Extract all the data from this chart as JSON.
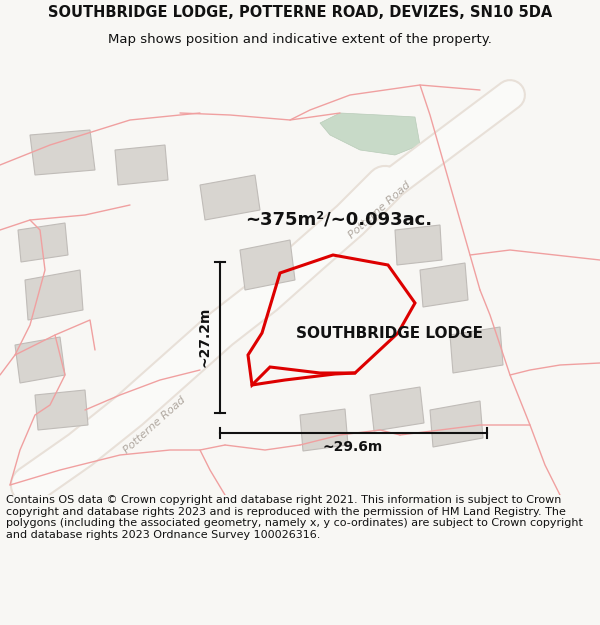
{
  "title_line1": "SOUTHBRIDGE LODGE, POTTERNE ROAD, DEVIZES, SN10 5DA",
  "title_line2": "Map shows position and indicative extent of the property.",
  "property_label": "SOUTHBRIDGE LODGE",
  "area_label": "~375m²/~0.093ac.",
  "dim_vertical": "~27.2m",
  "dim_horizontal": "~29.6m",
  "road_label1": "Potterne Road",
  "road_label2": "Potterne Road",
  "footer_text": "Contains OS data © Crown copyright and database right 2021. This information is subject to Crown copyright and database rights 2023 and is reproduced with the permission of HM Land Registry. The polygons (including the associated geometry, namely x, y co-ordinates) are subject to Crown copyright and database rights 2023 Ordnance Survey 100026316.",
  "bg_color": "#f8f7f4",
  "property_fill": "none",
  "property_edge": "#dd0000",
  "road_color": "#ffffff",
  "road_edge": "#e0d8d0",
  "building_fill": "#d8d5d0",
  "building_stroke": "#c0bcb8",
  "red_line_color": "#f0a0a0",
  "dim_color": "#222222",
  "title_fontsize": 10.5,
  "subtitle_fontsize": 9.5,
  "footer_fontsize": 8.0,
  "label_fontsize": 13
}
